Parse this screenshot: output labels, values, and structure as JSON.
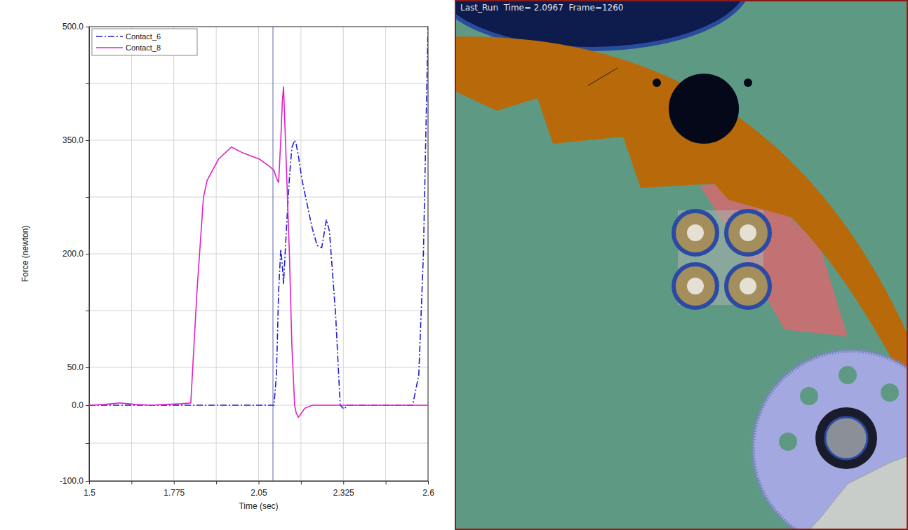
{
  "chart_data": {
    "type": "line",
    "x_label": "Time (sec)",
    "y_label": "Force (newton)",
    "x": [
      1.5,
      1.55,
      1.6,
      1.65,
      1.7,
      1.75,
      1.8,
      1.83,
      1.85,
      1.871,
      1.883,
      1.92,
      1.962,
      2.0,
      2.053,
      2.087,
      2.1,
      2.108,
      2.115,
      2.122,
      2.127,
      2.131,
      2.14,
      2.15,
      2.158,
      2.167,
      2.172,
      2.179,
      2.19,
      2.2,
      2.224,
      2.24,
      2.255,
      2.262,
      2.27,
      2.28,
      2.3,
      2.315,
      2.327,
      2.34,
      2.4,
      2.5,
      2.55,
      2.57,
      2.585,
      2.6
    ],
    "series": [
      {
        "name": "Contact_6",
        "color": "#1f1fd0",
        "line_style": "dashdot",
        "values": [
          0,
          0,
          0,
          0,
          0,
          0,
          0,
          0,
          0,
          0,
          0,
          0,
          0,
          0,
          0,
          0,
          0,
          40,
          150,
          206,
          185,
          160,
          230,
          300,
          340,
          350,
          345,
          330,
          300,
          280,
          234,
          211,
          208,
          225,
          245,
          230,
          120,
          0,
          -5,
          0,
          0,
          0,
          0,
          40,
          200,
          500
        ]
      },
      {
        "name": "Contact_8",
        "color": "#e020c8",
        "line_style": "solid",
        "values": [
          0,
          1,
          3,
          1,
          0,
          1,
          2,
          3,
          150,
          274,
          297,
          325,
          341,
          333,
          325,
          315,
          310,
          300,
          294,
          350,
          400,
          421,
          318,
          200,
          80,
          0,
          -10,
          -16,
          -10,
          -4,
          0,
          0,
          0,
          0,
          0,
          0,
          0,
          0,
          0,
          0,
          0,
          0,
          0,
          0,
          0,
          0
        ]
      }
    ],
    "xlim": [
      1.5,
      2.6
    ],
    "xticks": [
      1.5,
      {
        "value": 1.6375,
        "label": null
      },
      1.775,
      {
        "value": 1.9125,
        "label": null
      },
      2.05,
      {
        "value": 2.1875,
        "label": null
      },
      2.325,
      {
        "value": 2.4625,
        "label": null
      },
      2.6
    ],
    "ylim": [
      -100,
      500
    ],
    "yticks": [
      {
        "value": -100,
        "label": "-100.0"
      },
      {
        "value": -50,
        "label": null
      },
      {
        "value": 0,
        "label": "0.0"
      },
      {
        "value": 50,
        "label": "50.0"
      },
      {
        "value": 125,
        "label": null
      },
      {
        "value": 200,
        "label": "200.0"
      },
      {
        "value": 275,
        "label": null
      },
      {
        "value": 350,
        "label": "350.0"
      },
      {
        "value": 425,
        "label": null
      },
      {
        "value": 500,
        "label": "500.0"
      }
    ],
    "cursor": 2.0967,
    "grid": true,
    "legend": "upper left"
  },
  "screenshot": {
    "caption": "Last_Run  Time= 2.0967  Frame=1260"
  }
}
